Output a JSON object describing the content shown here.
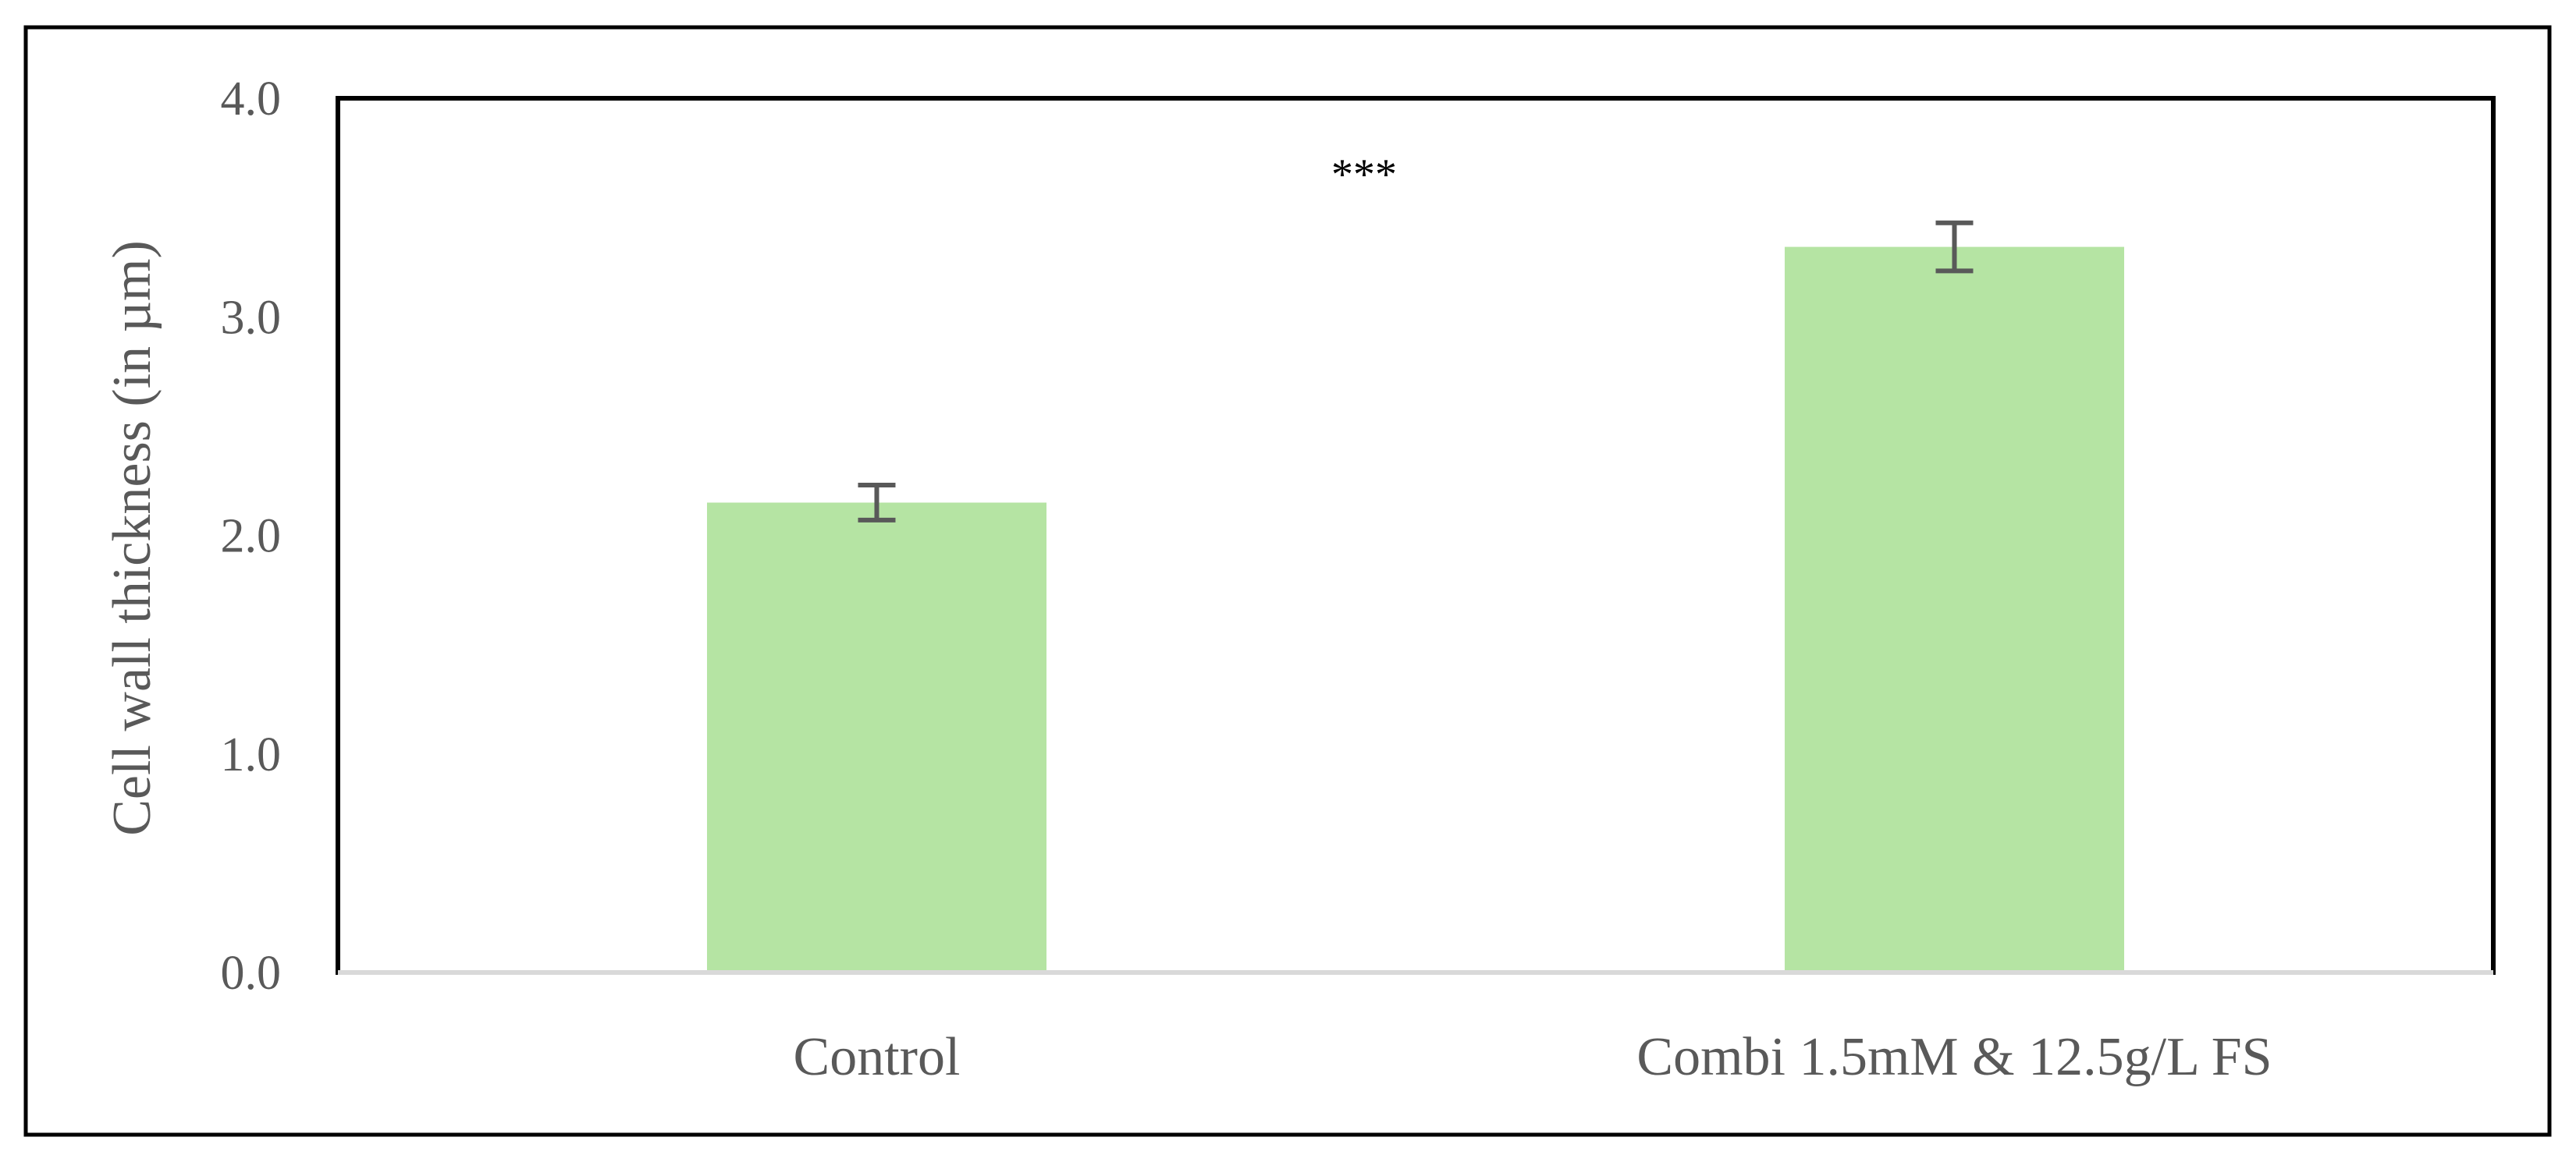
{
  "chart_data": {
    "type": "bar",
    "categories": [
      "Control",
      "Combi 1.5mM & 12.5g/L FS"
    ],
    "values": [
      2.15,
      3.32
    ],
    "error": [
      0.08,
      0.11
    ],
    "title": "",
    "xlabel": "",
    "ylabel": "Cell wall thickness (in µm)",
    "ylim": [
      0,
      4
    ],
    "yticks": [
      "0.0",
      "1.0",
      "2.0",
      "3.0",
      "4.0"
    ],
    "annotation": "***",
    "grid": false,
    "legend": "none",
    "colors": {
      "bar": "#b5e4a3",
      "error_bar": "#595959",
      "frame": "#000000",
      "baseline": "#d9d9d9"
    }
  }
}
